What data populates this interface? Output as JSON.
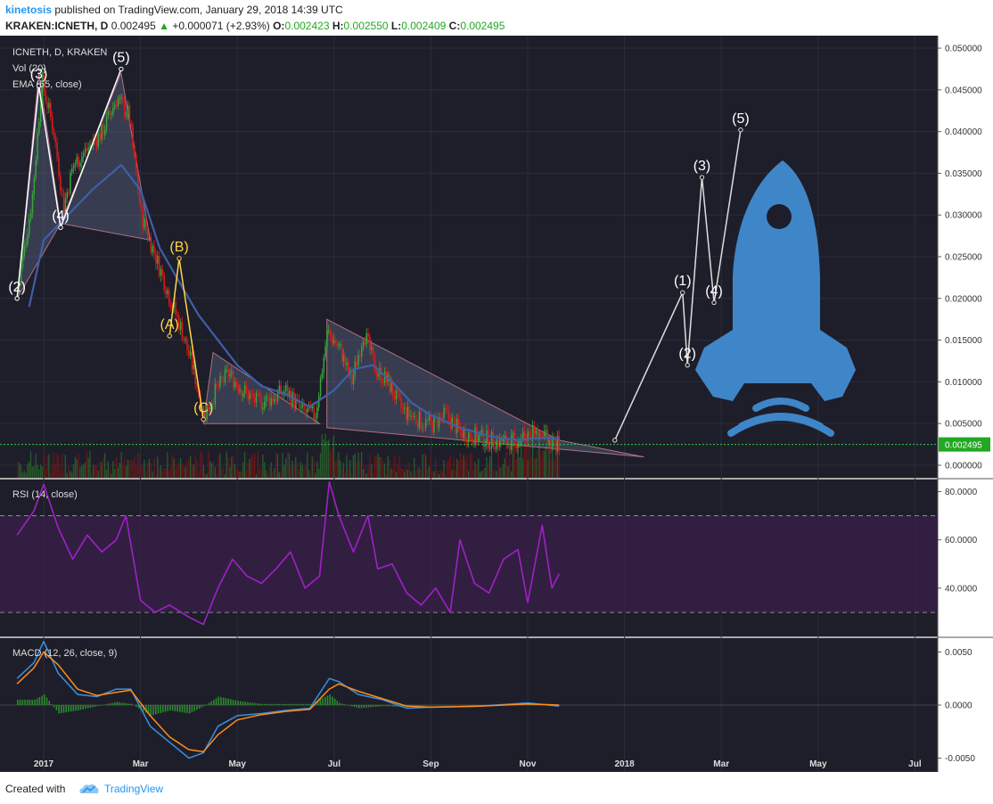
{
  "header": {
    "user": "kinetosis",
    "published": "published on TradingView.com, January 29, 2018 14:39 UTC",
    "symbol": "KRAKEN:ICNETH, D",
    "last": "0.002495",
    "change_arrow": "▲",
    "change": "+0.000071 (+2.93%)",
    "o_label": "O:",
    "o": "0.002423",
    "h_label": "H:",
    "h": "0.002550",
    "l_label": "L:",
    "l": "0.002409",
    "c_label": "C:",
    "c": "0.002495"
  },
  "legend": {
    "main": "ICNETH, D, KRAKEN",
    "vol": "Vol (20)",
    "ema": "EMA (55, close)",
    "rsi": "RSI (14, close)",
    "macd": "MACD (12, 26, close, 9)"
  },
  "footer": {
    "created": "Created with",
    "brand": "TradingView",
    "logo_icon": "tradingview-cloud-icon"
  },
  "colors": {
    "background": "#1e1e2a",
    "up": "#3aa33a",
    "down": "#e01a1a",
    "ema": "#3f5fa8",
    "rsi": "#a020c8",
    "wave_yellow": "#ffd54a",
    "triangle": "#b07080",
    "rocket": "#3f86c9",
    "last_price_bg": "#22a822"
  },
  "chart_data": {
    "type": "line",
    "x_ticks": [
      "2017",
      "Mar",
      "May",
      "Jul",
      "Sep",
      "Nov",
      "2018",
      "Mar",
      "May",
      "Jul"
    ],
    "price": {
      "y_ticks": [
        "0.050000",
        "0.045000",
        "0.040000",
        "0.035000",
        "0.030000",
        "0.025000",
        "0.020000",
        "0.015000",
        "0.010000",
        "0.005000",
        "0.000000"
      ],
      "ylim": [
        -0.0015,
        0.0515
      ],
      "last_price": "0.002495",
      "last_value": 0.002495,
      "approx_close": [
        [
          -0.55,
          0.021
        ],
        [
          -0.25,
          0.032
        ],
        [
          -0.05,
          0.046
        ],
        [
          0.2,
          0.04
        ],
        [
          0.4,
          0.031
        ],
        [
          0.6,
          0.036
        ],
        [
          0.9,
          0.038
        ],
        [
          1.2,
          0.04
        ],
        [
          1.5,
          0.044
        ],
        [
          1.75,
          0.042
        ],
        [
          2.0,
          0.03
        ],
        [
          2.3,
          0.025
        ],
        [
          2.6,
          0.02
        ],
        [
          2.85,
          0.016
        ],
        [
          3.1,
          0.011
        ],
        [
          3.3,
          0.006
        ],
        [
          3.55,
          0.009
        ],
        [
          3.8,
          0.011
        ],
        [
          4.1,
          0.009
        ],
        [
          4.4,
          0.0075
        ],
        [
          4.7,
          0.008
        ],
        [
          5.0,
          0.009
        ],
        [
          5.3,
          0.0065
        ],
        [
          5.6,
          0.006
        ],
        [
          5.85,
          0.016
        ],
        [
          6.1,
          0.014
        ],
        [
          6.35,
          0.01
        ],
        [
          6.6,
          0.016
        ],
        [
          6.85,
          0.0115
        ],
        [
          7.1,
          0.01
        ],
        [
          7.4,
          0.0065
        ],
        [
          7.7,
          0.0055
        ],
        [
          8.0,
          0.0048
        ],
        [
          8.3,
          0.006
        ],
        [
          8.6,
          0.004
        ],
        [
          8.9,
          0.0035
        ],
        [
          9.2,
          0.003
        ],
        [
          9.5,
          0.0028
        ],
        [
          9.8,
          0.003
        ],
        [
          10.1,
          0.0042
        ],
        [
          10.4,
          0.003
        ],
        [
          10.65,
          0.0025
        ]
      ],
      "ema55": [
        [
          -0.3,
          0.019
        ],
        [
          0.0,
          0.027
        ],
        [
          0.5,
          0.03
        ],
        [
          1.0,
          0.033
        ],
        [
          1.6,
          0.036
        ],
        [
          2.0,
          0.033
        ],
        [
          2.4,
          0.026
        ],
        [
          2.8,
          0.022
        ],
        [
          3.2,
          0.018
        ],
        [
          3.6,
          0.015
        ],
        [
          4.0,
          0.012
        ],
        [
          4.5,
          0.0095
        ],
        [
          5.0,
          0.0085
        ],
        [
          5.5,
          0.007
        ],
        [
          6.0,
          0.009
        ],
        [
          6.4,
          0.0115
        ],
        [
          6.8,
          0.012
        ],
        [
          7.2,
          0.01
        ],
        [
          7.6,
          0.0075
        ],
        [
          8.0,
          0.006
        ],
        [
          8.6,
          0.0045
        ],
        [
          9.2,
          0.0035
        ],
        [
          9.8,
          0.003
        ],
        [
          10.3,
          0.0033
        ],
        [
          10.65,
          0.0032
        ]
      ],
      "triangles": [
        [
          [
            -0.55,
            0.02
          ],
          [
            -0.1,
            0.047
          ],
          [
            0.35,
            0.029
          ]
        ],
        [
          [
            0.35,
            0.029
          ],
          [
            1.6,
            0.047
          ],
          [
            2.2,
            0.027
          ]
        ],
        [
          [
            3.3,
            0.005
          ],
          [
            3.5,
            0.0135
          ],
          [
            5.7,
            0.005
          ]
        ],
        [
          [
            5.85,
            0.0175
          ],
          [
            10.65,
            0.003
          ],
          [
            12.4,
            0.001
          ],
          [
            5.85,
            0.0045
          ]
        ]
      ],
      "waves_white_left": [
        {
          "label": "(2)",
          "x": -0.55,
          "y": 0.02
        },
        {
          "label": "(3)",
          "x": -0.1,
          "y": 0.0455
        },
        {
          "label": "(4)",
          "x": 0.35,
          "y": 0.0285
        },
        {
          "label": "(5)",
          "x": 1.6,
          "y": 0.0475
        }
      ],
      "waves_yellow": [
        {
          "label": "(A)",
          "x": 2.6,
          "y": 0.0155
        },
        {
          "label": "(B)",
          "x": 2.8,
          "y": 0.0248
        },
        {
          "label": "(C)",
          "x": 3.3,
          "y": 0.0055
        }
      ],
      "waves_white_projection": [
        {
          "label": "",
          "x": 11.8,
          "y": 0.003
        },
        {
          "label": "(1)",
          "x": 13.2,
          "y": 0.0207
        },
        {
          "label": "(2)",
          "x": 13.3,
          "y": 0.012
        },
        {
          "label": "(3)",
          "x": 13.6,
          "y": 0.0345
        },
        {
          "label": "(4)",
          "x": 13.85,
          "y": 0.0195
        },
        {
          "label": "(5)",
          "x": 14.4,
          "y": 0.0402
        }
      ]
    },
    "rsi": {
      "y_ticks": [
        "80.0000",
        "60.0000",
        "40.0000"
      ],
      "ylim": [
        20,
        85
      ],
      "bands": [
        30,
        70
      ],
      "approx": [
        [
          -0.55,
          62
        ],
        [
          -0.2,
          72
        ],
        [
          0.0,
          83
        ],
        [
          0.3,
          65
        ],
        [
          0.6,
          52
        ],
        [
          0.9,
          62
        ],
        [
          1.2,
          55
        ],
        [
          1.5,
          60
        ],
        [
          1.7,
          70
        ],
        [
          2.0,
          35
        ],
        [
          2.3,
          30
        ],
        [
          2.6,
          33
        ],
        [
          3.0,
          28
        ],
        [
          3.3,
          25
        ],
        [
          3.6,
          40
        ],
        [
          3.9,
          52
        ],
        [
          4.2,
          45
        ],
        [
          4.5,
          42
        ],
        [
          4.8,
          48
        ],
        [
          5.1,
          55
        ],
        [
          5.4,
          40
        ],
        [
          5.7,
          45
        ],
        [
          5.9,
          84
        ],
        [
          6.1,
          70
        ],
        [
          6.4,
          55
        ],
        [
          6.7,
          70
        ],
        [
          6.9,
          48
        ],
        [
          7.2,
          50
        ],
        [
          7.5,
          38
        ],
        [
          7.8,
          33
        ],
        [
          8.1,
          40
        ],
        [
          8.4,
          30
        ],
        [
          8.6,
          60
        ],
        [
          8.9,
          42
        ],
        [
          9.2,
          38
        ],
        [
          9.5,
          52
        ],
        [
          9.8,
          56
        ],
        [
          10.0,
          34
        ],
        [
          10.3,
          66
        ],
        [
          10.5,
          40
        ],
        [
          10.65,
          46
        ]
      ]
    },
    "macd": {
      "y_ticks": [
        "0.0050",
        "0.0000",
        "-0.0050"
      ],
      "ylim": [
        -0.0063,
        0.0063
      ],
      "macd": [
        [
          -0.55,
          0.0025
        ],
        [
          -0.2,
          0.004
        ],
        [
          0.0,
          0.006
        ],
        [
          0.3,
          0.003
        ],
        [
          0.7,
          0.001
        ],
        [
          1.1,
          0.0008
        ],
        [
          1.5,
          0.0015
        ],
        [
          1.8,
          0.0015
        ],
        [
          2.2,
          -0.002
        ],
        [
          2.6,
          -0.0035
        ],
        [
          3.0,
          -0.005
        ],
        [
          3.3,
          -0.0045
        ],
        [
          3.6,
          -0.002
        ],
        [
          4.0,
          -0.001
        ],
        [
          4.5,
          -0.0008
        ],
        [
          5.0,
          -0.0005
        ],
        [
          5.5,
          -0.0003
        ],
        [
          5.9,
          0.0025
        ],
        [
          6.1,
          0.0022
        ],
        [
          6.5,
          0.001
        ],
        [
          7.0,
          0.0005
        ],
        [
          7.5,
          -0.0003
        ],
        [
          8.0,
          -0.0002
        ],
        [
          9.0,
          -0.0001
        ],
        [
          10.0,
          0.0002
        ],
        [
          10.65,
          -0.0001
        ]
      ],
      "signal": [
        [
          -0.55,
          0.002
        ],
        [
          -0.2,
          0.0035
        ],
        [
          0.0,
          0.005
        ],
        [
          0.3,
          0.0038
        ],
        [
          0.7,
          0.0015
        ],
        [
          1.1,
          0.0009
        ],
        [
          1.5,
          0.0012
        ],
        [
          1.8,
          0.0014
        ],
        [
          2.2,
          -0.001
        ],
        [
          2.6,
          -0.003
        ],
        [
          3.0,
          -0.0042
        ],
        [
          3.3,
          -0.0044
        ],
        [
          3.6,
          -0.0028
        ],
        [
          4.0,
          -0.0014
        ],
        [
          4.5,
          -0.0009
        ],
        [
          5.0,
          -0.0006
        ],
        [
          5.5,
          -0.0004
        ],
        [
          5.9,
          0.0015
        ],
        [
          6.1,
          0.002
        ],
        [
          6.5,
          0.0013
        ],
        [
          7.0,
          0.0006
        ],
        [
          7.5,
          -0.0001
        ],
        [
          8.0,
          -0.0002
        ],
        [
          9.0,
          -0.0001
        ],
        [
          10.0,
          0.0001
        ],
        [
          10.65,
          0.0
        ]
      ]
    }
  }
}
